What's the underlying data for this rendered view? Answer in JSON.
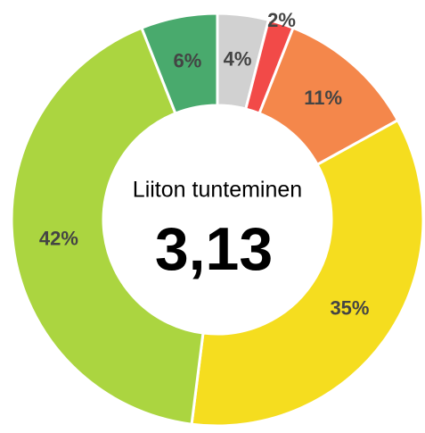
{
  "chart_data": {
    "type": "pie",
    "title": "Liiton tunteminen",
    "center_value": "3,13",
    "categories": [
      null,
      null,
      null,
      null,
      null,
      null
    ],
    "values": [
      4,
      2,
      11,
      35,
      42,
      6
    ],
    "value_labels": [
      "4%",
      "2%",
      "11%",
      "35%",
      "42%",
      "6%"
    ],
    "colors": [
      "#d1d1d1",
      "#f24a48",
      "#f4874b",
      "#f5dd1f",
      "#abd540",
      "#49aa6d"
    ]
  }
}
